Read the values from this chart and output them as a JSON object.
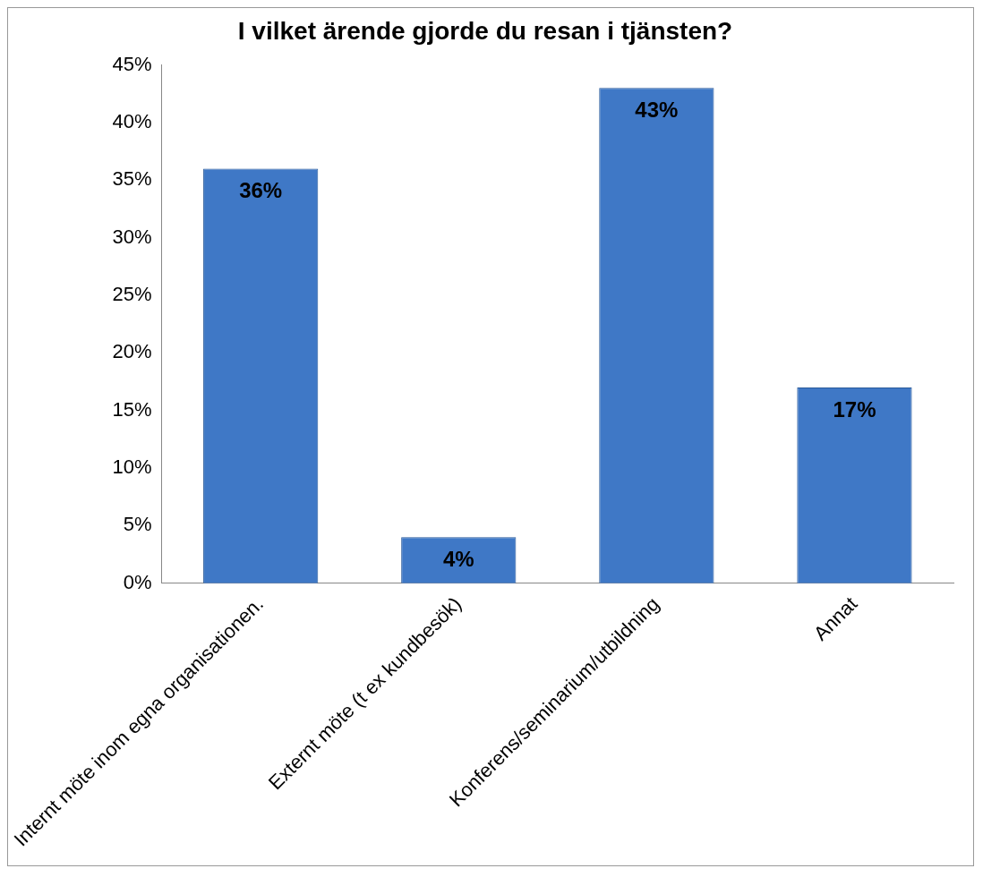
{
  "chart_data": {
    "type": "bar",
    "title": "I vilket ärende gjorde du resan i tjänsten?",
    "categories": [
      "Internt möte inom egna organisationen.",
      "Externt möte (t ex kundbesök)",
      "Konferens/seminarium/utbildning",
      "Annat"
    ],
    "values": [
      36,
      4,
      43,
      17
    ],
    "value_labels": [
      "36%",
      "4%",
      "43%",
      "17%"
    ],
    "color": "#3f78c6",
    "ylim": [
      0,
      45
    ],
    "yticks": [
      {
        "value": 0,
        "label": "0%"
      },
      {
        "value": 5,
        "label": "5%"
      },
      {
        "value": 10,
        "label": "10%"
      },
      {
        "value": 15,
        "label": "15%"
      },
      {
        "value": 20,
        "label": "20%"
      },
      {
        "value": 25,
        "label": "25%"
      },
      {
        "value": 30,
        "label": "30%"
      },
      {
        "value": 35,
        "label": "35%"
      },
      {
        "value": 40,
        "label": "40%"
      },
      {
        "value": 45,
        "label": "45%"
      }
    ],
    "grid": false,
    "legend": false
  }
}
